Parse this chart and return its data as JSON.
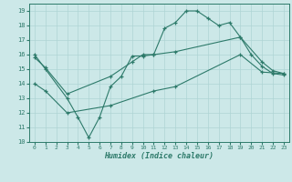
{
  "line1_x": [
    0,
    1,
    3,
    4,
    5,
    6,
    7,
    8,
    9,
    10,
    11,
    12,
    13,
    14,
    15,
    16,
    17,
    18,
    19,
    20,
    21,
    22,
    23
  ],
  "line1_y": [
    16,
    15,
    13,
    11.7,
    10.3,
    11.7,
    13.8,
    14.5,
    15.9,
    15.9,
    16.0,
    17.8,
    18.2,
    19.0,
    19.0,
    18.5,
    18.0,
    18.2,
    17.2,
    16.0,
    15.2,
    14.7,
    14.6
  ],
  "line2_x": [
    0,
    1,
    3,
    7,
    9,
    10,
    11,
    13,
    19,
    21,
    22,
    23
  ],
  "line2_y": [
    15.8,
    15.1,
    13.3,
    14.5,
    15.5,
    16.0,
    16.0,
    16.2,
    17.2,
    15.5,
    14.9,
    14.7
  ],
  "line3_x": [
    0,
    1,
    3,
    7,
    11,
    13,
    19,
    21,
    23
  ],
  "line3_y": [
    14.0,
    13.5,
    12.0,
    12.5,
    13.5,
    13.8,
    16.0,
    14.8,
    14.7
  ],
  "line_color": "#2d7a6a",
  "bg_color": "#cce8e8",
  "grid_color": "#aed4d4",
  "xlabel": "Humidex (Indice chaleur)",
  "xlim": [
    -0.5,
    23.5
  ],
  "ylim": [
    10,
    19.5
  ],
  "yticks": [
    10,
    11,
    12,
    13,
    14,
    15,
    16,
    17,
    18,
    19
  ],
  "xticks": [
    0,
    1,
    2,
    3,
    4,
    5,
    6,
    7,
    8,
    9,
    10,
    11,
    12,
    13,
    14,
    15,
    16,
    17,
    18,
    19,
    20,
    21,
    22,
    23
  ]
}
